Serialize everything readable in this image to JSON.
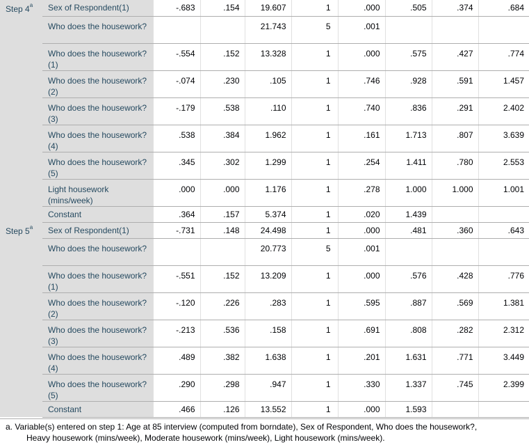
{
  "steps": [
    {
      "label": "Step 4",
      "sup": "a",
      "rows": [
        {
          "var": "Sex of Respondent(1)",
          "b": "-.683",
          "se": ".154",
          "wald": "19.607",
          "df": "1",
          "sig": ".000",
          "expb": ".505",
          "lower": ".374",
          "upper": ".684"
        },
        {
          "var": "Who does the housework?",
          "b": "",
          "se": "",
          "wald": "21.743",
          "df": "5",
          "sig": ".001",
          "expb": "",
          "lower": "",
          "upper": ""
        },
        {
          "var": "Who does the housework?(1)",
          "b": "-.554",
          "se": ".152",
          "wald": "13.328",
          "df": "1",
          "sig": ".000",
          "expb": ".575",
          "lower": ".427",
          "upper": ".774"
        },
        {
          "var": "Who does the housework?(2)",
          "b": "-.074",
          "se": ".230",
          "wald": ".105",
          "df": "1",
          "sig": ".746",
          "expb": ".928",
          "lower": ".591",
          "upper": "1.457"
        },
        {
          "var": "Who does the housework?(3)",
          "b": "-.179",
          "se": ".538",
          "wald": ".110",
          "df": "1",
          "sig": ".740",
          "expb": ".836",
          "lower": ".291",
          "upper": "2.402"
        },
        {
          "var": "Who does the housework?(4)",
          "b": ".538",
          "se": ".384",
          "wald": "1.962",
          "df": "1",
          "sig": ".161",
          "expb": "1.713",
          "lower": ".807",
          "upper": "3.639"
        },
        {
          "var": "Who does the housework?(5)",
          "b": ".345",
          "se": ".302",
          "wald": "1.299",
          "df": "1",
          "sig": ".254",
          "expb": "1.411",
          "lower": ".780",
          "upper": "2.553"
        },
        {
          "var": "Light housework (mins/week)",
          "b": ".000",
          "se": ".000",
          "wald": "1.176",
          "df": "1",
          "sig": ".278",
          "expb": "1.000",
          "lower": "1.000",
          "upper": "1.001"
        },
        {
          "var": "Constant",
          "b": ".364",
          "se": ".157",
          "wald": "5.374",
          "df": "1",
          "sig": ".020",
          "expb": "1.439",
          "lower": "",
          "upper": ""
        }
      ]
    },
    {
      "label": "Step 5",
      "sup": "a",
      "rows": [
        {
          "var": "Sex of Respondent(1)",
          "b": "-.731",
          "se": ".148",
          "wald": "24.498",
          "df": "1",
          "sig": ".000",
          "expb": ".481",
          "lower": ".360",
          "upper": ".643"
        },
        {
          "var": "Who does the housework?",
          "b": "",
          "se": "",
          "wald": "20.773",
          "df": "5",
          "sig": ".001",
          "expb": "",
          "lower": "",
          "upper": ""
        },
        {
          "var": "Who does the housework?(1)",
          "b": "-.551",
          "se": ".152",
          "wald": "13.209",
          "df": "1",
          "sig": ".000",
          "expb": ".576",
          "lower": ".428",
          "upper": ".776"
        },
        {
          "var": "Who does the housework?(2)",
          "b": "-.120",
          "se": ".226",
          "wald": ".283",
          "df": "1",
          "sig": ".595",
          "expb": ".887",
          "lower": ".569",
          "upper": "1.381"
        },
        {
          "var": "Who does the housework?(3)",
          "b": "-.213",
          "se": ".536",
          "wald": ".158",
          "df": "1",
          "sig": ".691",
          "expb": ".808",
          "lower": ".282",
          "upper": "2.312"
        },
        {
          "var": "Who does the housework?(4)",
          "b": ".489",
          "se": ".382",
          "wald": "1.638",
          "df": "1",
          "sig": ".201",
          "expb": "1.631",
          "lower": ".771",
          "upper": "3.449"
        },
        {
          "var": "Who does the housework?(5)",
          "b": ".290",
          "se": ".298",
          "wald": ".947",
          "df": "1",
          "sig": ".330",
          "expb": "1.337",
          "lower": ".745",
          "upper": "2.399"
        },
        {
          "var": "Constant",
          "b": ".466",
          "se": ".126",
          "wald": "13.552",
          "df": "1",
          "sig": ".000",
          "expb": "1.593",
          "lower": "",
          "upper": ""
        }
      ]
    }
  ],
  "footnote": {
    "line1": "a. Variable(s) entered on step 1: Age at 85 interview (computed from borndate), Sex of Respondent, Who does the housework?,",
    "line2": "Heavy housework (mins/week), Moderate housework (mins/week), Light housework (mins/week)."
  }
}
